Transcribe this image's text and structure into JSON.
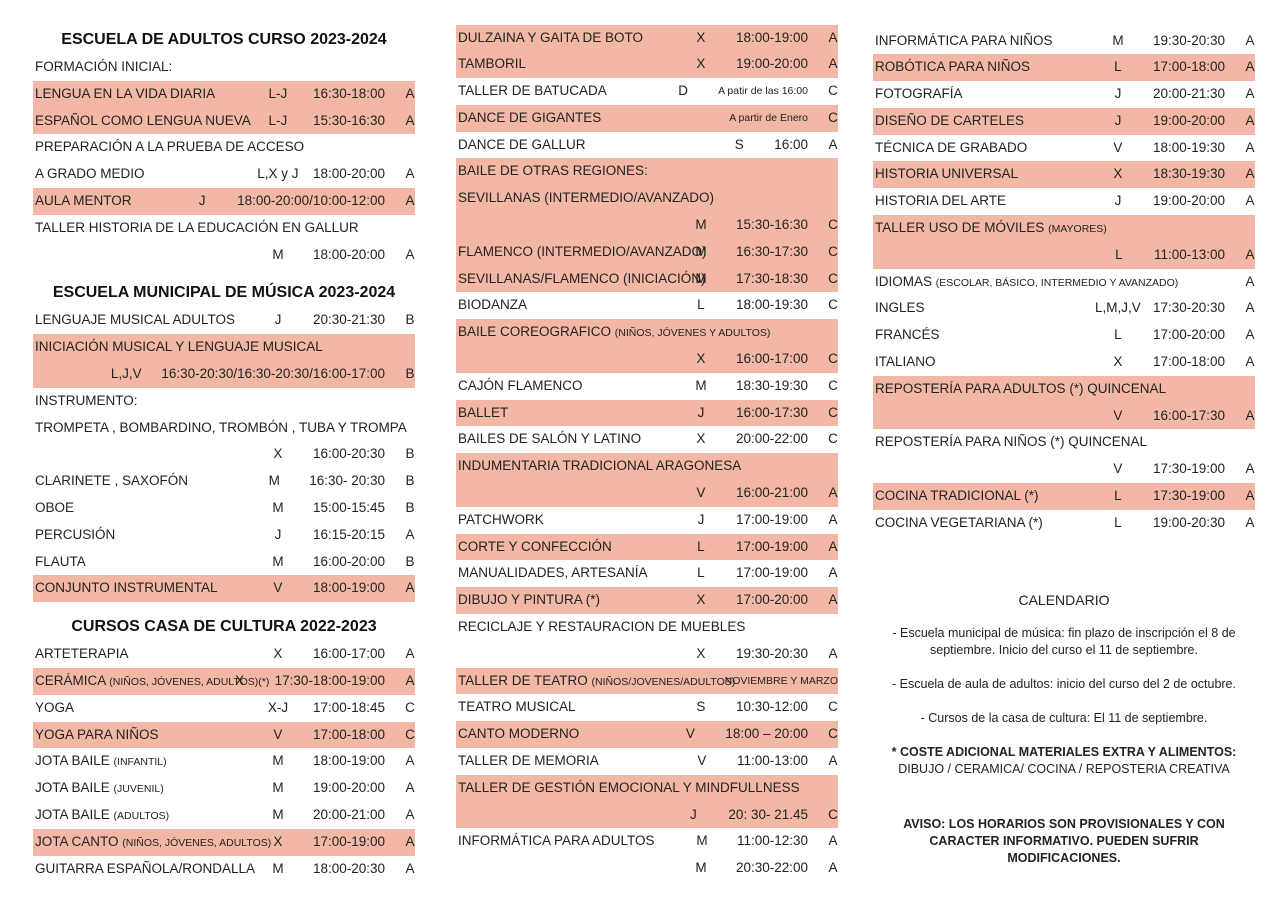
{
  "columns": [
    {
      "sections": [
        {
          "title": "ESCUELA DE ADULTOS CURSO 2023-2024",
          "rows": [
            {
              "name": "FORMACIÓN INICIAL:"
            },
            {
              "name": "LENGUA EN LA VIDA DIARIA",
              "day": "L-J",
              "time": "16:30-18:00",
              "code": "A",
              "shaded": true
            },
            {
              "name": "ESPAÑOL COMO LENGUA NUEVA",
              "day": "L-J",
              "time": "15:30-16:30",
              "code": "A",
              "shaded": true
            },
            {
              "name": "PREPARACIÓN A LA PRUEBA DE ACCESO"
            },
            {
              "name": "A GRADO MEDIO",
              "day": "L,X y J",
              "time": "18:00-20:00",
              "code": "A"
            },
            {
              "name": "AULA MENTOR",
              "day": "J",
              "time": "18:00-20:00/10:00-12:00",
              "code": "A",
              "shaded": true
            },
            {
              "name": "TALLER HISTORIA DE LA EDUCACIÓN EN GALLUR"
            },
            {
              "day": "M",
              "time": "18:00-20:00",
              "code": "A"
            }
          ]
        },
        {
          "title": "ESCUELA MUNICIPAL DE MÚSICA 2023-2024",
          "rows": [
            {
              "name": "LENGUAJE MUSICAL ADULTOS",
              "day": "J",
              "time": "20:30-21:30",
              "code": "B"
            },
            {
              "name": "INICIACIÓN MUSICAL  Y LENGUAJE MUSICAL",
              "shaded": true
            },
            {
              "day": "L,J,V",
              "time": "16:30-20:30/16:30-20:30/16:00-17:00",
              "code": "B",
              "shaded": true
            },
            {
              "name": "INSTRUMENTO:"
            },
            {
              "name": "TROMPETA , BOMBARDINO,  TROMBÓN , TUBA Y TROMPA"
            },
            {
              "day": "X",
              "time": "16:00-20:30",
              "code": "B"
            },
            {
              "name": "CLARINETE , SAXOFÓN",
              "day": "M",
              "time": "16:30- 20:30",
              "code": "B"
            },
            {
              "name": "OBOE",
              "day": "M",
              "time": "15:00-15:45",
              "code": "B"
            },
            {
              "name": "PERCUSIÓN",
              "day": "J",
              "time": "16:15-20:15",
              "code": "A"
            },
            {
              "name": "FLAUTA",
              "day": "M",
              "time": "16:00-20:00",
              "code": "B"
            },
            {
              "name": "CONJUNTO INSTRUMENTAL",
              "day": "V",
              "time": "18:00-19:00",
              "code": "A",
              "shaded": true
            }
          ]
        },
        {
          "title": "CURSOS CASA DE CULTURA 2022-2023",
          "rows": [
            {
              "name": "ARTETERAPIA",
              "day": "X",
              "time": "16:00-17:00",
              "code": "A"
            },
            {
              "name": "CERÁMICA",
              "note": "(NIÑOS, JÓVENES, ADULTOS)(*)",
              "day": "X",
              "time": "17:30-18:00-19:00",
              "code": "A",
              "shaded": true
            },
            {
              "name": "YOGA",
              "day": "X-J",
              "time": "17:00-18:45",
              "code": "C"
            },
            {
              "name": "YOGA PARA NIÑOS",
              "day": "V",
              "time": "17:00-18:00",
              "code": "C",
              "shaded": true
            },
            {
              "name": "JOTA BAILE",
              "note": "(INFANTIL)",
              "day": "M",
              "time": "18:00-19:00",
              "code": "A"
            },
            {
              "name": "JOTA BAILE",
              "note": "(JUVENIL)",
              "day": "M",
              "time": "19:00-20:00",
              "code": "A"
            },
            {
              "name": "JOTA BAILE",
              "note": "(ADULTOS)",
              "day": "M",
              "time": "20:00-21:00",
              "code": "A"
            },
            {
              "name": "JOTA CANTO",
              "note": "(NIÑOS, JÓVENES, ADULTOS)",
              "day": "X",
              "time": "17:00-19:00",
              "code": "A",
              "shaded": true
            },
            {
              "name": "GUITARRA ESPAÑOLA/RONDALLA",
              "day": "M",
              "time": "18:00-20:30",
              "code": "A"
            }
          ]
        }
      ]
    },
    {
      "sections": [
        {
          "rows": [
            {
              "name": "DULZAINA Y GAITA DE BOTO",
              "day": "X",
              "time": "18:00-19:00",
              "code": "A",
              "shaded": true
            },
            {
              "name": "TAMBORIL",
              "day": "X",
              "time": "19:00-20:00",
              "code": "A",
              "shaded": true
            },
            {
              "name": "TALLER DE BATUCADA",
              "day": "D",
              "remark": "A patir de las 16:00",
              "code": "C"
            },
            {
              "name": "DANCE DE GIGANTES",
              "remark": "A partir de Enero",
              "code": "C",
              "shaded": true
            },
            {
              "name": "DANCE DE GALLUR",
              "day": "S",
              "time": "16:00",
              "code": "A"
            },
            {
              "name": "BAILE DE OTRAS REGIONES:",
              "shaded": true
            },
            {
              "name": "SEVILLANAS (INTERMEDIO/AVANZADO)",
              "shaded": true
            },
            {
              "day": "M",
              "time": "15:30-16:30",
              "code": "C",
              "shaded": true
            },
            {
              "name": "FLAMENCO (INTERMEDIO/AVANZADO)",
              "day": "M",
              "time": "16:30-17:30",
              "code": "C",
              "shaded": true
            },
            {
              "name": "SEVILLANAS/FLAMENCO (INICIACIÓN)",
              "day": "M",
              "time": "17:30-18:30",
              "code": "C",
              "shaded": true
            },
            {
              "name": "BIODANZA",
              "day": "L",
              "time": "18:00-19:30",
              "code": "C"
            },
            {
              "name": "BAILE COREOGRAFICO",
              "note": "(NIÑOS, JÓVENES Y ADULTOS)",
              "shaded": true
            },
            {
              "day": "X",
              "time": "16:00-17:00",
              "code": "C",
              "shaded": true
            },
            {
              "name": "CAJÓN FLAMENCO",
              "day": "M",
              "time": "18:30-19:30",
              "code": "C"
            },
            {
              "name": "BALLET",
              "day": "J",
              "time": "16:00-17:30",
              "code": "C",
              "shaded": true
            },
            {
              "name": "BAILES DE SALÓN Y LATINO",
              "day": "X",
              "time": "20:00-22:00",
              "code": "C"
            },
            {
              "name": "INDUMENTARIA TRADICIONAL ARAGONESA",
              "shaded": true
            },
            {
              "day": "V",
              "time": "16:00-21:00",
              "code": "A",
              "shaded": true
            },
            {
              "name": "PATCHWORK",
              "day": "J",
              "time": "17:00-19:00",
              "code": "A"
            },
            {
              "name": "CORTE Y CONFECCIÓN",
              "day": "L",
              "time": "17:00-19:00",
              "code": "A",
              "shaded": true
            },
            {
              "name": "MANUALIDADES, ARTESANÍA",
              "day": "L",
              "time": "17:00-19:00",
              "code": "A"
            },
            {
              "name": "DIBUJO Y PINTURA (*)",
              "day": "X",
              "time": "17:00-20:00",
              "code": "A",
              "shaded": true
            },
            {
              "name": "RECICLAJE Y RESTAURACION DE MUEBLES"
            },
            {
              "day": "X",
              "time": "19:30-20:30",
              "code": "A"
            },
            {
              "name": "TALLER DE TEATRO",
              "note": "(NIÑOS/JOVENES/ADULTOS)",
              "remark": "NOVIEMBRE Y MARZO",
              "shaded": true
            },
            {
              "name": "TEATRO MUSICAL",
              "day": "S",
              "time": "10:30-12:00",
              "code": "C"
            },
            {
              "name": "CANTO MODERNO",
              "day": "V",
              "time": "18:00 – 20:00",
              "code": "C",
              "shaded": true
            },
            {
              "name": "TALLER DE MEMORIA",
              "day": "V",
              "time": "11:00-13:00",
              "code": "A"
            },
            {
              "name": "TALLER DE GESTIÓN EMOCIONAL  Y MINDFULLNESS",
              "shaded": true
            },
            {
              "day": "J",
              "time": "20: 30- 21.45",
              "code": "C",
              "shaded": true
            },
            {
              "name": "INFORMÁTICA PARA ADULTOS",
              "day": "M",
              "time": "11:00-12:30",
              "code": "A"
            },
            {
              "day": "M",
              "time": "20:30-22:00",
              "code": "A"
            }
          ]
        }
      ]
    },
    {
      "sections": [
        {
          "rows": [
            {
              "name": "INFORMÁTICA PARA NIÑOS",
              "day": "M",
              "time": "19:30-20:30",
              "code": "A"
            },
            {
              "name": "ROBÓTICA PARA NIÑOS",
              "day": "L",
              "time": "17:00-18:00",
              "code": "A",
              "shaded": true
            },
            {
              "name": "FOTOGRAFÍA",
              "day": "J",
              "time": "20:00-21:30",
              "code": "A"
            },
            {
              "name": "DISEÑO DE CARTELES",
              "day": "J",
              "time": "19:00-20:00",
              "code": "A",
              "shaded": true
            },
            {
              "name": "TÉCNICA DE GRABADO",
              "day": "V",
              "time": "18:00-19:30",
              "code": "A"
            },
            {
              "name": "HISTORIA UNIVERSAL",
              "day": "X",
              "time": "18:30-19:30",
              "code": "A",
              "shaded": true
            },
            {
              "name": "HISTORIA DEL ARTE",
              "day": "J",
              "time": "19:00-20:00",
              "code": "A"
            },
            {
              "name": "TALLER USO DE MÓVILES",
              "note": "(MAYORES)",
              "shaded": true
            },
            {
              "day": "L",
              "time": "11:00-13:00",
              "code": "A",
              "shaded": true
            },
            {
              "name": "IDIOMAS",
              "note": "(ESCOLAR, BÁSICO, INTERMEDIO Y AVANZADO)",
              "code": "A"
            },
            {
              "name": "INGLES",
              "day": "L,M,J,V",
              "time": "17:30-20:30",
              "code": "A"
            },
            {
              "name": "FRANCÉS",
              "day": "L",
              "time": "17:00-20:00",
              "code": "A"
            },
            {
              "name": "ITALIANO",
              "day": "X",
              "time": "17:00-18:00",
              "code": "A"
            },
            {
              "name": "REPOSTERÍA PARA ADULTOS (*) QUINCENAL",
              "shaded": true
            },
            {
              "day": "V",
              "time": "16:00-17:30",
              "code": "A",
              "shaded": true
            },
            {
              "name": "REPOSTERÍA PARA NIÑOS (*) QUINCENAL"
            },
            {
              "day": "V",
              "time": "17:30-19:00",
              "code": "A"
            },
            {
              "name": "COCINA TRADICIONAL (*)",
              "day": "L",
              "time": "17:30-19:00",
              "code": "A",
              "shaded": true
            },
            {
              "name": "COCINA VEGETARIANA (*)",
              "day": "L",
              "time": "19:00-20:30",
              "code": "A"
            }
          ]
        }
      ]
    }
  ],
  "calendar": {
    "title": "CALENDARIO",
    "items": [
      "- Escuela municipal de música: fin plazo de inscripción el 8 de septiembre.  Inicio  del curso el 11 de septiembre.",
      "- Escuela de aula de adultos: inicio del curso del 2 de octubre.",
      "- Cursos de la casa de cultura: El 11 de septiembre."
    ],
    "cost_title": "* COSTE ADICIONAL MATERIALES EXTRA Y ALIMENTOS:",
    "cost_items": "DIBUJO / CERAMICA/ COCINA / REPOSTERIA CREATIVA",
    "notice": "AVISO: LOS HORARIOS SON PROVISIONALES Y CON CARACTER INFORMATIVO. PUEDEN SUFRIR MODIFICACIONES."
  }
}
